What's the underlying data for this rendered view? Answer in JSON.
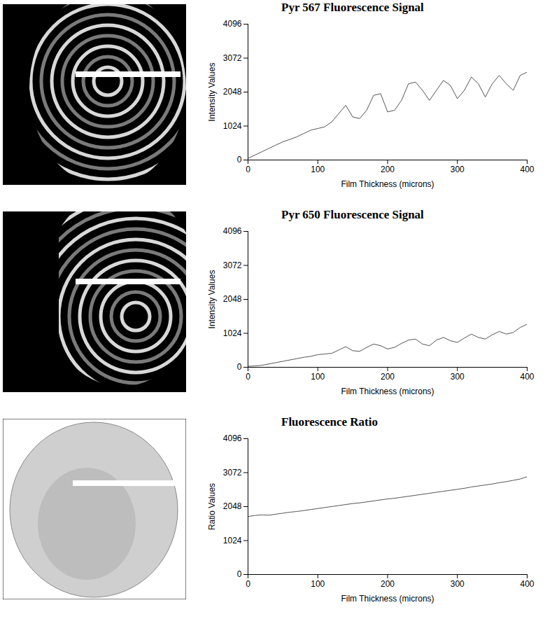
{
  "chart_data": [
    {
      "type": "line",
      "title": "Pyr 567 Fluorescence Signal",
      "x_label": "Film Thickness (microns)",
      "y_label": "Intensity Values",
      "x": [
        0,
        10,
        20,
        30,
        40,
        50,
        60,
        70,
        80,
        90,
        100,
        110,
        120,
        130,
        140,
        150,
        160,
        170,
        180,
        190,
        200,
        210,
        220,
        230,
        240,
        250,
        260,
        270,
        280,
        290,
        300,
        310,
        320,
        330,
        340,
        350,
        360,
        370,
        380,
        390,
        400
      ],
      "series": [
        {
          "name": "Pyr 567",
          "color": "#555555",
          "values": [
            50,
            150,
            250,
            350,
            450,
            550,
            620,
            700,
            800,
            900,
            950,
            1000,
            1150,
            1400,
            1650,
            1300,
            1250,
            1500,
            1950,
            2000,
            1450,
            1500,
            1800,
            2300,
            2350,
            2100,
            1800,
            2100,
            2400,
            2250,
            1850,
            2100,
            2500,
            2300,
            1900,
            2300,
            2550,
            2300,
            2100,
            2550,
            2650
          ]
        }
      ],
      "xlim": [
        0,
        400
      ],
      "xticks": [
        0,
        100,
        200,
        300,
        400
      ],
      "ylim": [
        0,
        4096
      ],
      "yticks": [
        0,
        1024,
        2048,
        3072,
        4096
      ],
      "grid": false
    },
    {
      "type": "line",
      "title": "Pyr 650 Fluorescence Signal",
      "x_label": "Film Thickness (microns)",
      "y_label": "Intensity Values",
      "x": [
        0,
        10,
        20,
        30,
        40,
        50,
        60,
        70,
        80,
        90,
        100,
        110,
        120,
        130,
        140,
        150,
        160,
        170,
        180,
        190,
        200,
        210,
        220,
        230,
        240,
        250,
        260,
        270,
        280,
        290,
        300,
        310,
        320,
        330,
        340,
        350,
        360,
        370,
        380,
        390,
        400
      ],
      "series": [
        {
          "name": "Pyr 650",
          "color": "#555555",
          "values": [
            30,
            40,
            60,
            100,
            140,
            180,
            220,
            260,
            300,
            330,
            380,
            400,
            420,
            520,
            620,
            500,
            480,
            600,
            700,
            650,
            550,
            600,
            720,
            820,
            850,
            700,
            650,
            820,
            900,
            800,
            750,
            880,
            1000,
            900,
            850,
            980,
            1080,
            1000,
            1050,
            1200,
            1300
          ]
        }
      ],
      "xlim": [
        0,
        400
      ],
      "xticks": [
        0,
        100,
        200,
        300,
        400
      ],
      "ylim": [
        0,
        4096
      ],
      "yticks": [
        0,
        1024,
        2048,
        3072,
        4096
      ],
      "grid": false
    },
    {
      "type": "line",
      "title": "Fluorescence Ratio",
      "x_label": "Film Thickness (microns)",
      "y_label": "Ratio Values",
      "x": [
        0,
        10,
        20,
        30,
        40,
        50,
        60,
        70,
        80,
        90,
        100,
        110,
        120,
        130,
        140,
        150,
        160,
        170,
        180,
        190,
        200,
        210,
        220,
        230,
        240,
        250,
        260,
        270,
        280,
        290,
        300,
        310,
        320,
        330,
        340,
        350,
        360,
        370,
        380,
        390,
        400
      ],
      "series": [
        {
          "name": "Ratio",
          "color": "#555555",
          "values": [
            1750,
            1780,
            1800,
            1790,
            1820,
            1850,
            1880,
            1900,
            1930,
            1960,
            1990,
            2020,
            2050,
            2080,
            2110,
            2140,
            2160,
            2190,
            2220,
            2250,
            2280,
            2300,
            2330,
            2360,
            2390,
            2420,
            2450,
            2480,
            2510,
            2540,
            2570,
            2600,
            2640,
            2670,
            2700,
            2730,
            2770,
            2800,
            2840,
            2880,
            2950
          ]
        }
      ],
      "xlim": [
        0,
        400
      ],
      "xticks": [
        0,
        100,
        200,
        300,
        400
      ],
      "ylim": [
        0,
        4096
      ],
      "yticks": [
        0,
        1024,
        2048,
        3072,
        4096
      ],
      "grid": false
    }
  ]
}
